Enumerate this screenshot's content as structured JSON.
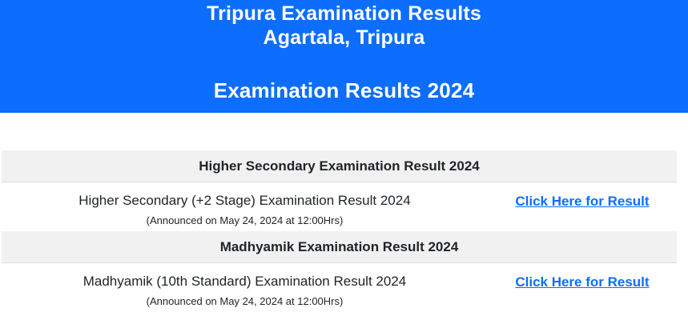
{
  "theme": {
    "header_bg": "#0d6efd",
    "header_text": "#ffffff",
    "section_bar_bg": "#f1f1f1",
    "section_bar_border": "#dcdcdc",
    "body_text": "#212529",
    "link_color": "#0d6efd"
  },
  "header": {
    "title_line1": "Tripura Examination Results",
    "title_line2": "Agartala, Tripura",
    "subtitle": "Examination Results 2024"
  },
  "sections": [
    {
      "heading": "Higher Secondary Examination Result 2024",
      "exam_name": "Higher Secondary (+2 Stage) Examination Result 2024",
      "announcement": "(Announced on May 24, 2024 at 12:00Hrs)",
      "link_label": "Click Here for Result"
    },
    {
      "heading": "Madhyamik Examination Result 2024",
      "exam_name": "Madhyamik (10th Standard) Examination Result 2024",
      "announcement": "(Announced on May 24, 2024 at 12:00Hrs)",
      "link_label": "Click Here for Result"
    }
  ]
}
